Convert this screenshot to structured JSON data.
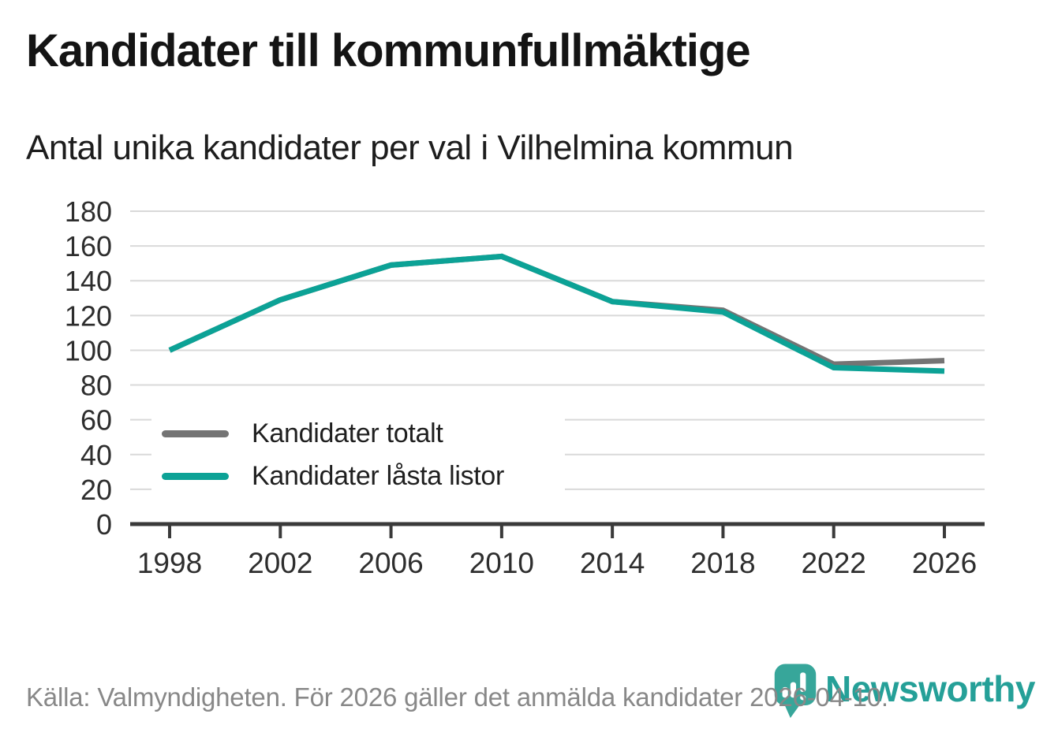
{
  "header": {
    "title": "Kandidater till kommunfullmäktige",
    "subtitle": "Antal unika kandidater per val i Vilhelmina kommun"
  },
  "chart_data": {
    "type": "line",
    "categories": [
      "1998",
      "2002",
      "2006",
      "2010",
      "2014",
      "2018",
      "2022",
      "2026"
    ],
    "series": [
      {
        "name": "Kandidater totalt",
        "color": "#747474",
        "values": [
          100,
          129,
          149,
          154,
          128,
          123,
          92,
          94
        ]
      },
      {
        "name": "Kandidater låsta listor",
        "color": "#0ca296",
        "values": [
          100,
          129,
          149,
          154,
          128,
          122,
          90,
          88
        ]
      }
    ],
    "ylim": [
      0,
      180
    ],
    "ytick_step": 20,
    "xlabel": "",
    "ylabel": "",
    "grid": "horizontal",
    "legend_position": "inside-left",
    "axis_color": "#3a3a3a",
    "grid_color": "#d9d9d9",
    "tick_label_color": "#2e2e2e"
  },
  "footer": {
    "source": "Källa: Valmyndigheten. För 2026 gäller det anmälda kandidater 2026-04-10.",
    "brand": "Newsworthy",
    "brand_color": "#25a098",
    "logo_icon": "bar-chart-exclamation-bubble-icon"
  }
}
